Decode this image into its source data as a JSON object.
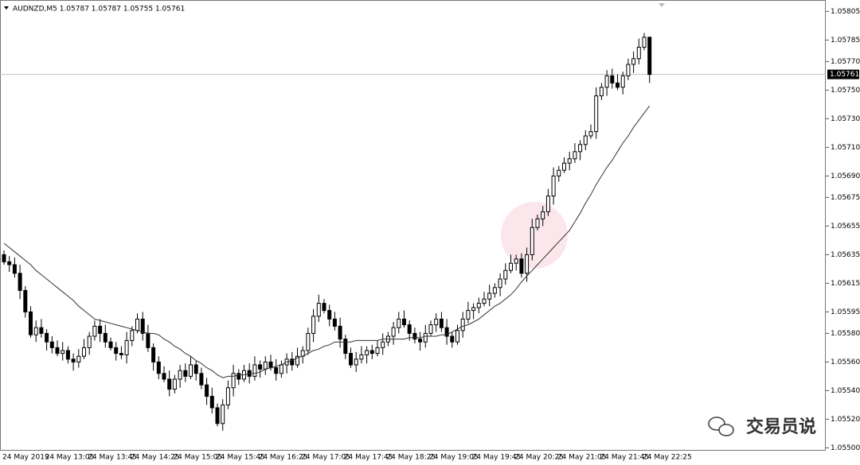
{
  "chart_data": {
    "type": "candlestick",
    "title": "AUDNZD,M5  1.05787 1.05787 1.05755 1.05761",
    "watermark": "交易员说",
    "up_color": "#ffffff",
    "down_color": "#000000",
    "outline_color": "#000000",
    "categories": [
      "24 May 2019",
      null,
      null,
      null,
      null,
      null,
      null,
      null,
      "24 May 13:05",
      null,
      null,
      null,
      null,
      null,
      null,
      null,
      "24 May 13:45",
      null,
      null,
      null,
      null,
      null,
      null,
      null,
      "24 May 14:25",
      null,
      null,
      null,
      null,
      null,
      null,
      null,
      "24 May 15:05",
      null,
      null,
      null,
      null,
      null,
      null,
      null,
      "24 May 15:45",
      null,
      null,
      null,
      null,
      null,
      null,
      null,
      "24 May 16:25",
      null,
      null,
      null,
      null,
      null,
      null,
      null,
      "24 May 17:05",
      null,
      null,
      null,
      null,
      null,
      null,
      null,
      "24 May 17:45",
      null,
      null,
      null,
      null,
      null,
      null,
      null,
      "24 May 18:25",
      null,
      null,
      null,
      null,
      null,
      null,
      null,
      "24 May 19:05",
      null,
      null,
      null,
      null,
      null,
      null,
      null,
      "24 May 19:45",
      null,
      null,
      null,
      null,
      null,
      null,
      null,
      "24 May 20:25",
      null,
      null,
      null,
      null,
      null,
      null,
      null,
      "24 May 21:05",
      null,
      null,
      null,
      null,
      null,
      null,
      null,
      "24 May 21:45",
      null,
      null,
      null,
      null,
      null,
      null,
      null,
      "24 May 22:25",
      null
    ],
    "ohlc": [
      [
        1.05635,
        1.05638,
        1.05628,
        1.0563
      ],
      [
        1.0563,
        1.05634,
        1.05623,
        1.05628
      ],
      [
        1.05628,
        1.05633,
        1.05619,
        1.05622
      ],
      [
        1.05622,
        1.05628,
        1.05604,
        1.0561
      ],
      [
        1.0561,
        1.05613,
        1.05591,
        1.05595
      ],
      [
        1.05595,
        1.05599,
        1.05577,
        1.05579
      ],
      [
        1.05579,
        1.05589,
        1.05574,
        1.05584
      ],
      [
        1.05584,
        1.0559,
        1.05577,
        1.0558
      ],
      [
        1.0558,
        1.05583,
        1.05568,
        1.05574
      ],
      [
        1.05574,
        1.05578,
        1.05566,
        1.0557
      ],
      [
        1.0557,
        1.05575,
        1.05564,
        1.05566
      ],
      [
        1.05566,
        1.05574,
        1.05561,
        1.05568
      ],
      [
        1.05568,
        1.05571,
        1.05559,
        1.05562
      ],
      [
        1.05562,
        1.05566,
        1.05554,
        1.0556
      ],
      [
        1.0556,
        1.05569,
        1.05556,
        1.05564
      ],
      [
        1.05564,
        1.05576,
        1.05562,
        1.0557
      ],
      [
        1.0557,
        1.05581,
        1.05565,
        1.05578
      ],
      [
        1.05578,
        1.05589,
        1.05575,
        1.05585
      ],
      [
        1.05585,
        1.0559,
        1.05574,
        1.0558
      ],
      [
        1.0558,
        1.05586,
        1.0557,
        1.05574
      ],
      [
        1.05574,
        1.05577,
        1.05568,
        1.0557
      ],
      [
        1.0557,
        1.05574,
        1.05561,
        1.05566
      ],
      [
        1.05566,
        1.05571,
        1.05562,
        1.05565
      ],
      [
        1.05565,
        1.05581,
        1.05559,
        1.05575
      ],
      [
        1.05575,
        1.05585,
        1.05571,
        1.05582
      ],
      [
        1.05582,
        1.05594,
        1.0558,
        1.0559
      ],
      [
        1.0559,
        1.05595,
        1.05575,
        1.0558
      ],
      [
        1.0558,
        1.05586,
        1.05567,
        1.0557
      ],
      [
        1.0557,
        1.05573,
        1.05554,
        1.0556
      ],
      [
        1.0556,
        1.05564,
        1.05548,
        1.05552
      ],
      [
        1.05552,
        1.05557,
        1.05546,
        1.05548
      ],
      [
        1.05548,
        1.05554,
        1.05536,
        1.05541
      ],
      [
        1.05541,
        1.05551,
        1.05538,
        1.05548
      ],
      [
        1.05548,
        1.05558,
        1.05542,
        1.05554
      ],
      [
        1.05554,
        1.05559,
        1.05546,
        1.0555
      ],
      [
        1.0555,
        1.05564,
        1.05548,
        1.05558
      ],
      [
        1.05558,
        1.05561,
        1.05547,
        1.05552
      ],
      [
        1.05552,
        1.05556,
        1.05541,
        1.05544
      ],
      [
        1.05544,
        1.05549,
        1.0553,
        1.05536
      ],
      [
        1.05536,
        1.05542,
        1.05524,
        1.05528
      ],
      [
        1.05528,
        1.05531,
        1.05515,
        1.05517
      ],
      [
        1.05517,
        1.05534,
        1.05512,
        1.0553
      ],
      [
        1.0553,
        1.05547,
        1.05527,
        1.05542
      ],
      [
        1.05542,
        1.05558,
        1.05536,
        1.05552
      ],
      [
        1.05552,
        1.05555,
        1.05544,
        1.05548
      ],
      [
        1.05548,
        1.05558,
        1.05546,
        1.05554
      ],
      [
        1.05554,
        1.05559,
        1.05545,
        1.0555
      ],
      [
        1.0555,
        1.05564,
        1.05547,
        1.05558
      ],
      [
        1.05558,
        1.05561,
        1.05549,
        1.05555
      ],
      [
        1.05555,
        1.05564,
        1.05551,
        1.0556
      ],
      [
        1.0556,
        1.05565,
        1.05554,
        1.05556
      ],
      [
        1.05556,
        1.05562,
        1.05547,
        1.05552
      ],
      [
        1.05552,
        1.05561,
        1.05549,
        1.05558
      ],
      [
        1.05558,
        1.05566,
        1.05552,
        1.05562
      ],
      [
        1.05562,
        1.05567,
        1.05554,
        1.05558
      ],
      [
        1.05558,
        1.0557,
        1.05556,
        1.05564
      ],
      [
        1.05564,
        1.05571,
        1.05559,
        1.05568
      ],
      [
        1.05568,
        1.05584,
        1.05565,
        1.0558
      ],
      [
        1.0558,
        1.05597,
        1.05574,
        1.05592
      ],
      [
        1.05592,
        1.05607,
        1.05588,
        1.05601
      ],
      [
        1.05601,
        1.05604,
        1.05594,
        1.05596
      ],
      [
        1.05596,
        1.056,
        1.05585,
        1.0559
      ],
      [
        1.0559,
        1.05595,
        1.05582,
        1.05585
      ],
      [
        1.05585,
        1.05591,
        1.0557,
        1.05576
      ],
      [
        1.05576,
        1.05579,
        1.05562,
        1.05566
      ],
      [
        1.05566,
        1.0557,
        1.05556,
        1.05558
      ],
      [
        1.05558,
        1.05567,
        1.05553,
        1.05562
      ],
      [
        1.05562,
        1.05571,
        1.05559,
        1.05565
      ],
      [
        1.05565,
        1.05571,
        1.05559,
        1.05568
      ],
      [
        1.05568,
        1.05572,
        1.05562,
        1.05566
      ],
      [
        1.05566,
        1.05575,
        1.05564,
        1.0557
      ],
      [
        1.0557,
        1.0558,
        1.05565,
        1.05574
      ],
      [
        1.05574,
        1.05581,
        1.05571,
        1.05578
      ],
      [
        1.05578,
        1.05588,
        1.05572,
        1.05584
      ],
      [
        1.05584,
        1.05595,
        1.0558,
        1.0559
      ],
      [
        1.0559,
        1.05596,
        1.05584,
        1.05586
      ],
      [
        1.05586,
        1.05589,
        1.05575,
        1.0558
      ],
      [
        1.0558,
        1.05584,
        1.05573,
        1.05576
      ],
      [
        1.05576,
        1.05581,
        1.05568,
        1.05574
      ],
      [
        1.05574,
        1.05586,
        1.0557,
        1.0558
      ],
      [
        1.0558,
        1.05589,
        1.05578,
        1.05586
      ],
      [
        1.05586,
        1.05594,
        1.05581,
        1.0559
      ],
      [
        1.0559,
        1.05595,
        1.05581,
        1.05584
      ],
      [
        1.05584,
        1.0559,
        1.05572,
        1.05578
      ],
      [
        1.05578,
        1.05581,
        1.0557,
        1.05574
      ],
      [
        1.05574,
        1.05586,
        1.05572,
        1.05582
      ],
      [
        1.05582,
        1.05595,
        1.05577,
        1.0559
      ],
      [
        1.0559,
        1.05602,
        1.05587,
        1.05596
      ],
      [
        1.05596,
        1.05601,
        1.0559,
        1.05598
      ],
      [
        1.05598,
        1.05605,
        1.05594,
        1.05601
      ],
      [
        1.05601,
        1.05609,
        1.05599,
        1.05604
      ],
      [
        1.05604,
        1.05614,
        1.05599,
        1.05608
      ],
      [
        1.05608,
        1.05615,
        1.05605,
        1.05612
      ],
      [
        1.05612,
        1.05622,
        1.05606,
        1.05618
      ],
      [
        1.05618,
        1.05629,
        1.05614,
        1.05624
      ],
      [
        1.05624,
        1.05635,
        1.05622,
        1.05629
      ],
      [
        1.05629,
        1.05635,
        1.05624,
        1.05632
      ],
      [
        1.05632,
        1.05636,
        1.05619,
        1.05622
      ],
      [
        1.05622,
        1.0564,
        1.05616,
        1.05635
      ],
      [
        1.05635,
        1.0566,
        1.05631,
        1.05654
      ],
      [
        1.05654,
        1.05663,
        1.05652,
        1.0566
      ],
      [
        1.0566,
        1.05669,
        1.05655,
        1.05665
      ],
      [
        1.05665,
        1.05681,
        1.05662,
        1.05676
      ],
      [
        1.05676,
        1.05696,
        1.0567,
        1.0569
      ],
      [
        1.0569,
        1.05697,
        1.05686,
        1.05694
      ],
      [
        1.05694,
        1.05703,
        1.05692,
        1.05699
      ],
      [
        1.05699,
        1.05707,
        1.05694,
        1.05702
      ],
      [
        1.05702,
        1.05713,
        1.05699,
        1.05707
      ],
      [
        1.05707,
        1.05715,
        1.05701,
        1.05712
      ],
      [
        1.05712,
        1.05722,
        1.05708,
        1.05718
      ],
      [
        1.05718,
        1.05726,
        1.05716,
        1.05721
      ],
      [
        1.05721,
        1.05752,
        1.05716,
        1.05746
      ],
      [
        1.05746,
        1.05755,
        1.05743,
        1.05752
      ],
      [
        1.05752,
        1.05764,
        1.05746,
        1.0576
      ],
      [
        1.0576,
        1.05765,
        1.05751,
        1.05755
      ],
      [
        1.05755,
        1.05761,
        1.0575,
        1.05752
      ],
      [
        1.05752,
        1.05763,
        1.05747,
        1.0576
      ],
      [
        1.0576,
        1.05772,
        1.05757,
        1.05768
      ],
      [
        1.05768,
        1.05777,
        1.05762,
        1.05772
      ],
      [
        1.05772,
        1.05786,
        1.05768,
        1.0578
      ],
      [
        1.0578,
        1.0579,
        1.05778,
        1.05787
      ],
      [
        1.05787,
        1.05787,
        1.05755,
        1.05761
      ]
    ],
    "moving_average": {
      "color": "#333333",
      "values": [
        1.05643,
        1.0564,
        1.05637,
        1.05634,
        1.05631,
        1.05628,
        1.05624,
        1.05621,
        1.05618,
        1.05615,
        1.05612,
        1.05609,
        1.05606,
        1.05603,
        1.05599,
        1.05596,
        1.05593,
        1.0559,
        1.05589,
        1.05588,
        1.05587,
        1.05586,
        1.05585,
        1.05584,
        1.05583,
        1.05582,
        1.05581,
        1.0558,
        1.0558,
        1.05579,
        1.05576,
        1.05574,
        1.05571,
        1.05569,
        1.05566,
        1.05564,
        1.05561,
        1.05559,
        1.05556,
        1.05554,
        1.05551,
        1.05549,
        1.0555,
        1.0555,
        1.05551,
        1.05551,
        1.05552,
        1.05552,
        1.05553,
        1.05555,
        1.05556,
        1.05557,
        1.05558,
        1.0556,
        1.05561,
        1.05563,
        1.05564,
        1.05566,
        1.05568,
        1.05569,
        1.05571,
        1.05572,
        1.05574,
        1.05574,
        1.05574,
        1.05574,
        1.05575,
        1.05575,
        1.05575,
        1.05575,
        1.05575,
        1.05576,
        1.05576,
        1.05576,
        1.05576,
        1.05576,
        1.05577,
        1.05577,
        1.05577,
        1.05578,
        1.05578,
        1.05578,
        1.05579,
        1.05579,
        1.05581,
        1.05583,
        1.05585,
        1.05586,
        1.05588,
        1.0559,
        1.05593,
        1.05596,
        1.05599,
        1.05601,
        1.05604,
        1.05607,
        1.05611,
        1.05616,
        1.0562,
        1.05624,
        1.05628,
        1.05632,
        1.05636,
        1.0564,
        1.05644,
        1.05648,
        1.05652,
        1.05658,
        1.05664,
        1.05671,
        1.05677,
        1.05684,
        1.0569,
        1.05696,
        1.05701,
        1.05707,
        1.05713,
        1.05718,
        1.05724,
        1.05729,
        1.05734,
        1.05739
      ]
    },
    "last_price": 1.05761,
    "ylim": [
      1.05498,
      1.05813
    ],
    "yticks": [
      1.05805,
      1.05785,
      {
        "value": 1.0577,
        "label": "1.05770"
      },
      {
        "value": 1.0575,
        "label": "1.05750"
      },
      {
        "value": 1.0573,
        "label": "1.05730"
      },
      {
        "value": 1.0571,
        "label": "1.05710"
      },
      {
        "value": 1.0569,
        "label": "1.05690"
      },
      1.05675,
      1.05655,
      1.05635,
      1.05615,
      1.05595,
      {
        "value": 1.0558,
        "label": "1.05580"
      },
      {
        "value": 1.0556,
        "label": "1.05560"
      },
      {
        "value": 1.0554,
        "label": "1.05540"
      },
      {
        "value": 1.0552,
        "label": "1.05520"
      },
      {
        "value": 1.055,
        "label": "1.05500"
      }
    ],
    "grid": false
  }
}
